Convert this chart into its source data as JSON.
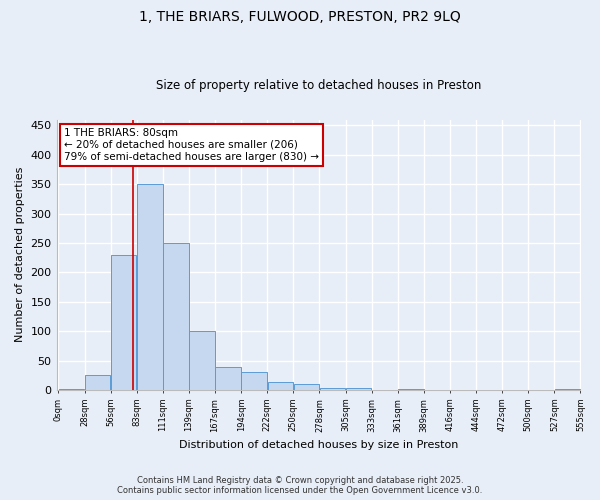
{
  "title": "1, THE BRIARS, FULWOOD, PRESTON, PR2 9LQ",
  "subtitle": "Size of property relative to detached houses in Preston",
  "xlabel": "Distribution of detached houses by size in Preston",
  "ylabel": "Number of detached properties",
  "bar_values": [
    2,
    25,
    230,
    350,
    250,
    100,
    40,
    30,
    13,
    10,
    3,
    3,
    0,
    2,
    0,
    0,
    0,
    0,
    0,
    2
  ],
  "bar_labels": [
    "0sqm",
    "28sqm",
    "56sqm",
    "83sqm",
    "111sqm",
    "139sqm",
    "167sqm",
    "194sqm",
    "222sqm",
    "250sqm",
    "278sqm",
    "305sqm",
    "333sqm",
    "361sqm",
    "389sqm",
    "416sqm",
    "444sqm",
    "472sqm",
    "500sqm",
    "527sqm",
    "555sqm"
  ],
  "bar_color": "#c5d8f0",
  "bar_edge_color": "#5b9bd5",
  "ylim": [
    0,
    460
  ],
  "yticks": [
    0,
    50,
    100,
    150,
    200,
    250,
    300,
    350,
    400,
    450
  ],
  "property_line_x": 80,
  "bin_width": 28,
  "annotation_text": "1 THE BRIARS: 80sqm\n← 20% of detached houses are smaller (206)\n79% of semi-detached houses are larger (830) →",
  "annotation_box_color": "#ffffff",
  "annotation_box_edge": "#cc0000",
  "red_line_color": "#cc0000",
  "footer_line1": "Contains HM Land Registry data © Crown copyright and database right 2025.",
  "footer_line2": "Contains public sector information licensed under the Open Government Licence v3.0.",
  "background_color": "#e8eef7",
  "grid_color": "#ffffff"
}
